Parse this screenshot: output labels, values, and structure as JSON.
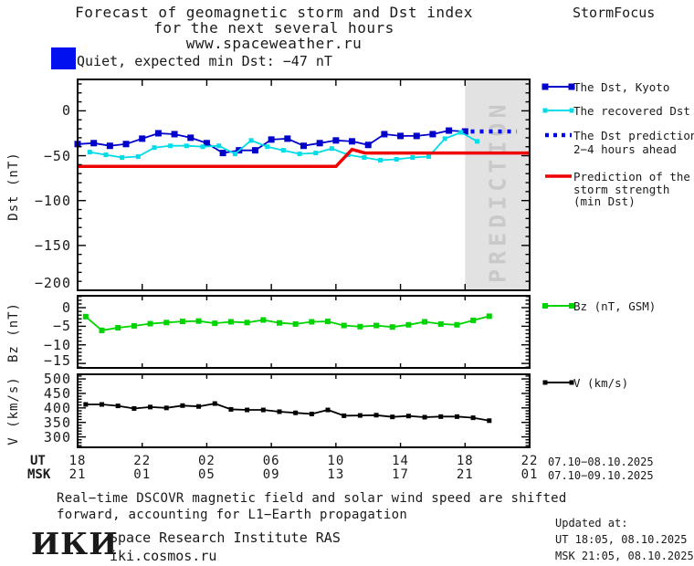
{
  "header": {
    "title_line1": "Forecast of geomagnetic storm and Dst index",
    "title_line2": "for the next several hours",
    "title_line3": "www.spaceweather.ru",
    "brand": "StormFocus"
  },
  "status": {
    "label": "Quiet, expected min Dst: −47 nT",
    "badge_color": "#0010ee"
  },
  "legend": {
    "dst_kyoto": "The Dst, Kyoto",
    "recovered": "The recovered Dst",
    "prediction_line1": "The Dst prediction",
    "prediction_line2": "2−4 hours ahead",
    "strength_line1": "Prediction of the",
    "strength_line2": "storm strength",
    "strength_line3": "(min Dst)",
    "bz": "Bz (nT, GSM)",
    "v": "V (km/s)"
  },
  "axes": {
    "dst_label": "Dst (nT)",
    "bz_label": "Bz (nT)",
    "v_label": "V (km/s)",
    "ut_prefix": "UT",
    "msk_prefix": "MSK",
    "ut_ticks": [
      "18",
      "22",
      "02",
      "06",
      "10",
      "14",
      "18",
      "22"
    ],
    "msk_ticks": [
      "21",
      "01",
      "05",
      "09",
      "13",
      "17",
      "21",
      "01"
    ],
    "ut_daterange": "07.10−08.10.2025",
    "msk_daterange": "07.10−09.10.2025",
    "dst_ticks": [
      "0",
      "−50",
      "−100",
      "−150",
      "−200"
    ],
    "bz_ticks": [
      "0",
      "−5",
      "−10",
      "−15"
    ],
    "v_ticks": [
      "500",
      "450",
      "400",
      "350",
      "300"
    ]
  },
  "prediction_band": {
    "label": "PREDICTION",
    "from_hour": 24,
    "to_hour": 28,
    "band_color": "#e2e2e2",
    "text_color": "#c9c9c9"
  },
  "chart_data": [
    {
      "type": "line",
      "panel": "dst",
      "ylabel": "Dst (nT)",
      "ylim": [
        -200,
        35
      ],
      "yticks": [
        0,
        -50,
        -100,
        -150,
        -200
      ],
      "x_axis": "hours UT starting 18:00 07.10.2025, ticks every 4 h",
      "series": [
        {
          "name": "The Dst, Kyoto",
          "color": "#0000cc",
          "marker": 7,
          "lw": 1.8,
          "start_hour": 0,
          "step": 1,
          "values": [
            -37,
            -36,
            -39,
            -37,
            -31,
            -25,
            -26,
            -30,
            -36,
            -47,
            -44,
            -44,
            -32,
            -31,
            -39,
            -36,
            -33,
            -34,
            -38,
            -26,
            -28,
            -28,
            -26,
            -22,
            -23
          ]
        },
        {
          "name": "The recovered Dst",
          "color": "#00dce8",
          "marker": 5,
          "lw": 1.8,
          "start_hour": 0.75,
          "step": 1,
          "values": [
            -46,
            -49,
            -52,
            -51,
            -41,
            -39,
            -39,
            -40,
            -39,
            -48,
            -33,
            -40,
            -44,
            -48,
            -47,
            -42,
            -49,
            -52,
            -55,
            -54,
            -52,
            -51,
            -31,
            -24,
            -34
          ]
        },
        {
          "name": "The Dst prediction 2−4 hours ahead",
          "color": "#0000ee",
          "lw": 4.5,
          "dash": "4 6",
          "points": [
            [
              24.35,
              -23
            ],
            [
              27.2,
              -23
            ]
          ]
        },
        {
          "name": "Prediction of the storm strength (min Dst)",
          "color": "#ee0000",
          "lw": 3.5,
          "points": [
            [
              0,
              -62
            ],
            [
              16,
              -62
            ],
            [
              17,
              -43
            ],
            [
              17.8,
              -47
            ],
            [
              28,
              -47
            ]
          ]
        }
      ]
    },
    {
      "type": "line",
      "panel": "bz",
      "ylabel": "Bz (nT)",
      "ylim": [
        -16.2,
        3.2
      ],
      "yticks": [
        0,
        -5,
        -10,
        -15
      ],
      "series": [
        {
          "name": "Bz (nT, GSM)",
          "color": "#00d400",
          "marker": 6,
          "lw": 1.8,
          "start_hour": 0.5,
          "step": 1,
          "values": [
            -2.4,
            -6.1,
            -5.4,
            -4.9,
            -4.3,
            -4.0,
            -3.7,
            -3.6,
            -4.2,
            -3.8,
            -4.0,
            -3.3,
            -4.1,
            -4.4,
            -3.8,
            -3.7,
            -4.8,
            -5.1,
            -4.8,
            -5.2,
            -4.6,
            -3.8,
            -4.4,
            -4.6,
            -3.4,
            -2.3
          ]
        }
      ]
    },
    {
      "type": "line",
      "panel": "v",
      "ylabel": "V (km/s)",
      "ylim": [
        264,
        516
      ],
      "yticks": [
        500,
        450,
        400,
        350,
        300
      ],
      "series": [
        {
          "name": "V (km/s)",
          "color": "#000000",
          "marker": 5,
          "lw": 1.8,
          "start_hour": 0.5,
          "step": 1,
          "values": [
            412,
            412,
            407,
            398,
            403,
            400,
            408,
            405,
            415,
            395,
            393,
            393,
            387,
            383,
            379,
            393,
            373,
            374,
            375,
            369,
            372,
            368,
            370,
            370,
            366,
            356
          ]
        }
      ]
    }
  ],
  "footnote": {
    "line1": "Real−time DSCOVR magnetic field and solar wind speed are shifted",
    "line2": "forward, accounting for L1−Earth propagation"
  },
  "footer": {
    "logo": "ИКИ",
    "institute": "Space Research Institute RAS",
    "site": "iki.cosmos.ru",
    "updated_label": "Updated at:",
    "updated_ut": "UT  18:05, 08.10.2025",
    "updated_msk": "MSK 21:05, 08.10.2025"
  }
}
